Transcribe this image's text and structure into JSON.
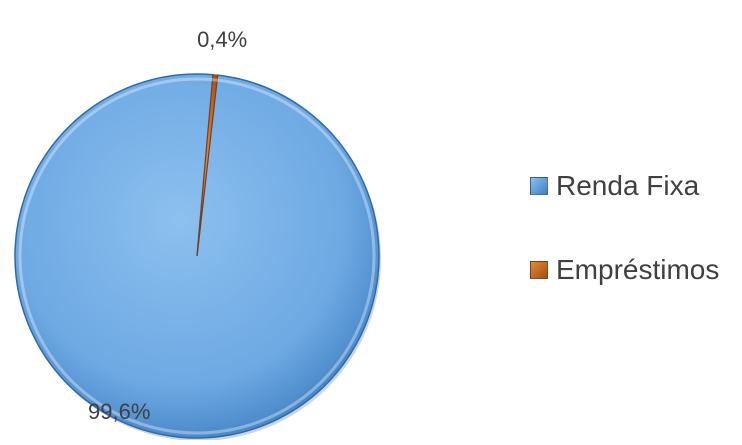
{
  "chart_data": {
    "type": "pie",
    "title": "",
    "slices": [
      {
        "name": "Renda Fixa",
        "value": 99.6,
        "label": "99,6%",
        "color": "#5b9bd5"
      },
      {
        "name": "Empréstimos",
        "value": 0.4,
        "label": "0,4%",
        "color": "#c55a11"
      }
    ],
    "legend_position": "right",
    "style": "3d-bevel"
  },
  "legend": {
    "items": [
      {
        "label": "Renda Fixa",
        "color": "#5b9bd5"
      },
      {
        "label": "Empréstimos",
        "color": "#c55a11"
      }
    ]
  }
}
